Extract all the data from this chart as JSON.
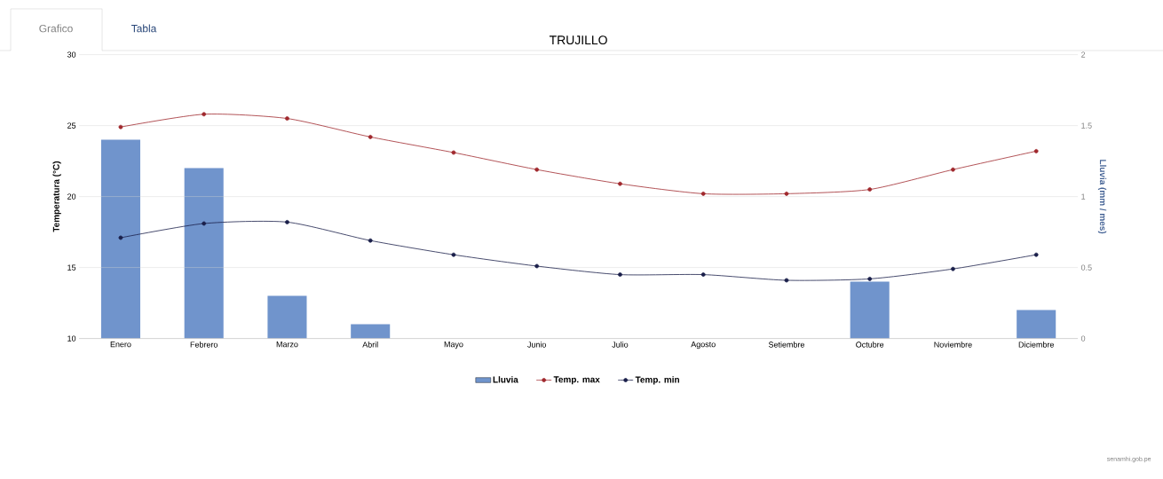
{
  "chart_data": {
    "type": "bar",
    "title": "TRUJILLO",
    "categories": [
      "Enero",
      "Febrero",
      "Marzo",
      "Abril",
      "Mayo",
      "Junio",
      "Julio",
      "Agosto",
      "Setiembre",
      "Octubre",
      "Noviembre",
      "Diciembre"
    ],
    "series": [
      {
        "name": "Lluvia",
        "axis": "y2",
        "color": "#7094cc",
        "values": [
          1.4,
          1.2,
          0.3,
          0.1,
          0,
          0,
          0,
          0,
          0,
          0.4,
          0,
          0.2
        ]
      },
      {
        "name": "Temp. max",
        "type": "line",
        "color": "#a0282d",
        "marker": "circle",
        "values": [
          24.9,
          25.8,
          25.5,
          24.2,
          23.1,
          21.9,
          20.9,
          20.2,
          20.2,
          20.5,
          21.9,
          23.2
        ]
      },
      {
        "name": "Temp. min",
        "type": "line",
        "color": "#1a1f4a",
        "marker": "circle",
        "values": [
          17.1,
          18.1,
          18.2,
          16.9,
          15.9,
          15.1,
          14.5,
          14.5,
          14.1,
          14.2,
          14.9,
          15.9
        ]
      }
    ],
    "ylabel": "Temperatura (°C)",
    "y2label": "Lluvia (mm / mes)",
    "ylim": [
      10,
      30
    ],
    "yticks": [
      10,
      15,
      20,
      25,
      30
    ],
    "y2lim": [
      0,
      2
    ],
    "y2ticks": [
      0,
      0.5,
      1,
      1.5,
      2
    ],
    "grid": "y",
    "legend": "bottom",
    "annotations": [
      "Grafico",
      "Tabla",
      "senamhi.gob.pe"
    ]
  }
}
